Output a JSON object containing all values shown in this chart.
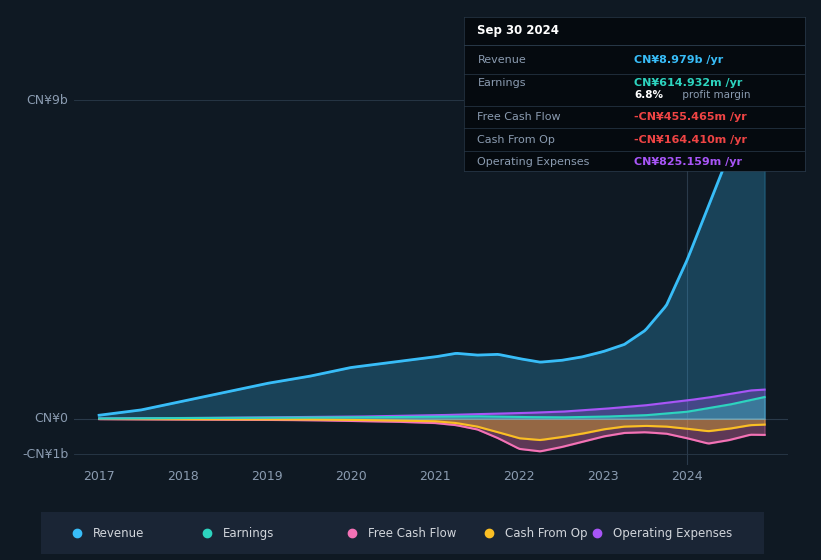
{
  "bg_color": "#0f1923",
  "plot_bg_color": "#0f1923",
  "legend_bg": "#1a2535",
  "tooltip_bg": "#050a0f",
  "grid_color": "#2a3a4a",
  "text_color": "#8a9bb0",
  "white": "#ffffff",
  "legend": [
    {
      "label": "Revenue",
      "color": "#38bdf8"
    },
    {
      "label": "Earnings",
      "color": "#2dd4bf"
    },
    {
      "label": "Free Cash Flow",
      "color": "#f472b6"
    },
    {
      "label": "Cash From Op",
      "color": "#fbbf24"
    },
    {
      "label": "Operating Expenses",
      "color": "#a855f7"
    }
  ],
  "tooltip_title": "Sep 30 2024",
  "tooltip_rows": [
    {
      "label": "Revenue",
      "value": "CN¥8.979b /yr",
      "value_color": "#38bdf8",
      "sub": null
    },
    {
      "label": "Earnings",
      "value": "CN¥614.932m /yr",
      "value_color": "#2dd4bf",
      "sub": "6.8% profit margin"
    },
    {
      "label": "Free Cash Flow",
      "value": "-CN¥455.465m /yr",
      "value_color": "#ef4444",
      "sub": null
    },
    {
      "label": "Cash From Op",
      "value": "-CN¥164.410m /yr",
      "value_color": "#ef4444",
      "sub": null
    },
    {
      "label": "Operating Expenses",
      "value": "CN¥825.159m /yr",
      "value_color": "#a855f7",
      "sub": null
    }
  ],
  "x_ticks": [
    2017,
    2018,
    2019,
    2020,
    2021,
    2022,
    2023,
    2024
  ],
  "y_labels": [
    {
      "val": 9.0,
      "text": "CN¥9b"
    },
    {
      "val": 0.0,
      "text": "CN¥0"
    },
    {
      "val": -1.0,
      "text": "-CN¥1b"
    }
  ],
  "ylim": [
    -1.3,
    9.3
  ],
  "xlim": [
    2016.7,
    2025.2
  ],
  "vline_x": 2024.0
}
